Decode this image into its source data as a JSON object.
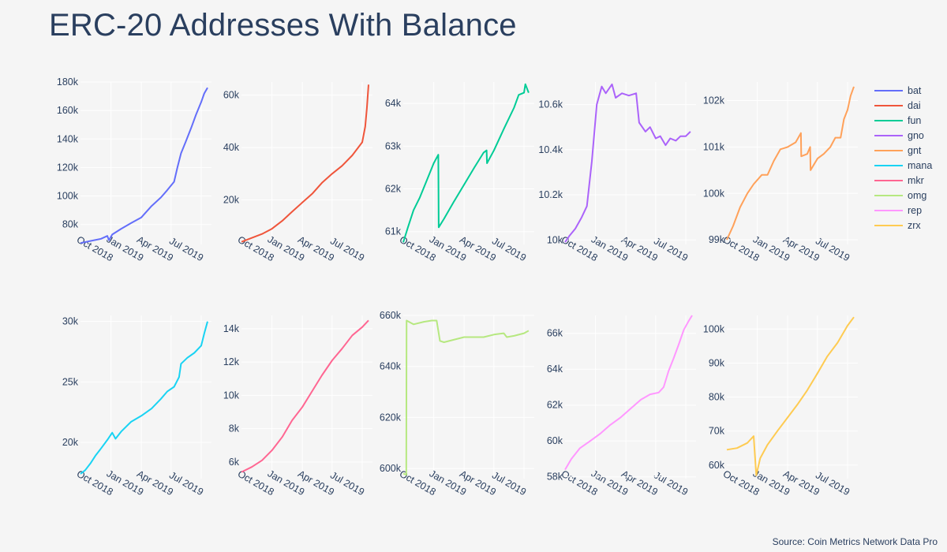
{
  "title": "ERC-20 Addresses With Balance",
  "source": "Source: Coin Metrics Network Data Pro",
  "colors": {
    "bat": "#636efa",
    "dai": "#ef553b",
    "fun": "#00cc96",
    "gno": "#ab63fa",
    "gnt": "#ffa15a",
    "mana": "#19d3f3",
    "mkr": "#ff6692",
    "omg": "#b6e880",
    "rep": "#ff97ff",
    "zrx": "#fecb52",
    "axis_text": "#2a3f5f",
    "grid": "#ffffff",
    "background": "#f5f5f5"
  },
  "legend": [
    "bat",
    "dai",
    "fun",
    "gno",
    "gnt",
    "mana",
    "mkr",
    "omg",
    "rep",
    "zrx"
  ],
  "chart_data": [
    {
      "type": "line",
      "name": "bat",
      "xlim": [
        "2018-07-01",
        "2019-08-01"
      ],
      "ylim": [
        66000,
        180000
      ],
      "yticks": [
        80000,
        100000,
        120000,
        140000,
        160000,
        180000
      ],
      "yticklabels": [
        "80k",
        "100k",
        "120k",
        "140k",
        "160k",
        "180k"
      ],
      "xticks": [
        "2018-10-01",
        "2019-01-01",
        "2019-04-01",
        "2019-07-01"
      ],
      "xticklabels": [
        "Oct 2018",
        "Jan 2019",
        "Apr 2019",
        "Jul 2019"
      ],
      "x": [
        "2018-07-01",
        "2018-08-01",
        "2018-09-01",
        "2018-09-20",
        "2018-09-25",
        "2018-10-05",
        "2018-11-01",
        "2018-12-01",
        "2019-01-01",
        "2019-02-01",
        "2019-03-01",
        "2019-03-20",
        "2019-04-10",
        "2019-04-20",
        "2019-05-01",
        "2019-05-15",
        "2019-06-01",
        "2019-06-15",
        "2019-07-01",
        "2019-07-10",
        "2019-07-20"
      ],
      "y": [
        67000,
        68500,
        70000,
        72000,
        69000,
        73000,
        77000,
        81000,
        85000,
        93000,
        99000,
        104000,
        110000,
        120000,
        130000,
        138000,
        148000,
        157000,
        166000,
        172000,
        176000
      ]
    },
    {
      "type": "line",
      "name": "dai",
      "xlim": [
        "2018-07-01",
        "2019-08-01"
      ],
      "ylim": [
        3000,
        65000
      ],
      "yticks": [
        20000,
        40000,
        60000
      ],
      "yticklabels": [
        "20k",
        "40k",
        "60k"
      ],
      "xticks": [
        "2018-10-01",
        "2019-01-01",
        "2019-04-01",
        "2019-07-01"
      ],
      "xticklabels": [
        "Oct 2018",
        "Jan 2019",
        "Apr 2019",
        "Jul 2019"
      ],
      "x": [
        "2018-07-01",
        "2018-08-01",
        "2018-09-01",
        "2018-10-01",
        "2018-11-01",
        "2018-12-01",
        "2019-01-01",
        "2019-02-01",
        "2019-03-01",
        "2019-04-01",
        "2019-05-01",
        "2019-06-01",
        "2019-07-01",
        "2019-07-10",
        "2019-07-15",
        "2019-07-20"
      ],
      "y": [
        4000,
        5500,
        7000,
        9000,
        12000,
        15500,
        19000,
        22500,
        26500,
        30000,
        33000,
        37000,
        42000,
        48000,
        55000,
        64000
      ]
    },
    {
      "type": "line",
      "name": "fun",
      "xlim": [
        "2018-07-01",
        "2019-08-01"
      ],
      "ylim": [
        60700,
        64500
      ],
      "yticks": [
        61000,
        62000,
        63000,
        64000
      ],
      "yticklabels": [
        "61k",
        "62k",
        "63k",
        "64k"
      ],
      "xticks": [
        "2018-10-01",
        "2019-01-01",
        "2019-04-01",
        "2019-07-01"
      ],
      "xticklabels": [
        "Oct 2018",
        "Jan 2019",
        "Apr 2019",
        "Jul 2019"
      ],
      "x": [
        "2018-07-01",
        "2018-07-15",
        "2018-08-01",
        "2018-08-20",
        "2018-09-10",
        "2018-10-01",
        "2018-10-15",
        "2018-10-16",
        "2018-11-01",
        "2018-12-01",
        "2019-01-01",
        "2019-02-01",
        "2019-03-01",
        "2019-03-10",
        "2019-03-11",
        "2019-04-01",
        "2019-05-01",
        "2019-06-01",
        "2019-06-15",
        "2019-07-01",
        "2019-07-05",
        "2019-07-15"
      ],
      "y": [
        60750,
        61100,
        61500,
        61800,
        62200,
        62600,
        62800,
        61100,
        61300,
        61700,
        62100,
        62500,
        62850,
        62900,
        62600,
        62900,
        63400,
        63900,
        64200,
        64250,
        64450,
        64250
      ]
    },
    {
      "type": "line",
      "name": "gno",
      "xlim": [
        "2018-07-01",
        "2019-08-01"
      ],
      "ylim": [
        9980,
        10700
      ],
      "yticks": [
        10000,
        10200,
        10400,
        10600
      ],
      "yticklabels": [
        "10k",
        "10.2k",
        "10.4k",
        "10.6k"
      ],
      "xticks": [
        "2018-10-01",
        "2019-01-01",
        "2019-04-01",
        "2019-07-01"
      ],
      "xticklabels": [
        "Oct 2018",
        "Jan 2019",
        "Apr 2019",
        "Jul 2019"
      ],
      "x": [
        "2018-07-01",
        "2018-07-15",
        "2018-08-01",
        "2018-08-20",
        "2018-09-05",
        "2018-09-20",
        "2018-10-05",
        "2018-10-20",
        "2018-11-01",
        "2018-11-20",
        "2018-12-01",
        "2018-12-20",
        "2019-01-10",
        "2019-02-01",
        "2019-02-10",
        "2019-03-01",
        "2019-03-15",
        "2019-04-01",
        "2019-04-15",
        "2019-05-01",
        "2019-05-15",
        "2019-06-01",
        "2019-06-15",
        "2019-07-01",
        "2019-07-15"
      ],
      "y": [
        9990,
        10020,
        10050,
        10100,
        10150,
        10350,
        10600,
        10680,
        10650,
        10690,
        10630,
        10650,
        10640,
        10650,
        10520,
        10480,
        10500,
        10450,
        10460,
        10420,
        10450,
        10440,
        10460,
        10460,
        10480
      ]
    },
    {
      "type": "line",
      "name": "gnt",
      "xlim": [
        "2018-07-01",
        "2019-08-01"
      ],
      "ylim": [
        98900,
        102400
      ],
      "yticks": [
        99000,
        100000,
        101000,
        102000
      ],
      "yticklabels": [
        "99k",
        "100k",
        "101k",
        "102k"
      ],
      "xticks": [
        "2018-10-01",
        "2019-01-01",
        "2019-04-01",
        "2019-07-01"
      ],
      "xticklabels": [
        "Oct 2018",
        "Jan 2019",
        "Apr 2019",
        "Jul 2019"
      ],
      "x": [
        "2018-07-01",
        "2018-07-20",
        "2018-08-10",
        "2018-09-01",
        "2018-09-20",
        "2018-10-15",
        "2018-11-01",
        "2018-11-20",
        "2018-12-10",
        "2019-01-01",
        "2019-01-25",
        "2019-02-10",
        "2019-02-11",
        "2019-03-01",
        "2019-03-10",
        "2019-03-11",
        "2019-04-01",
        "2019-04-20",
        "2019-05-10",
        "2019-05-25",
        "2019-06-10",
        "2019-06-20",
        "2019-07-01",
        "2019-07-10",
        "2019-07-20"
      ],
      "y": [
        99000,
        99300,
        99700,
        100000,
        100200,
        100400,
        100400,
        100700,
        100950,
        101000,
        101100,
        101300,
        100800,
        100850,
        101000,
        100500,
        100750,
        100850,
        101000,
        101200,
        101200,
        101600,
        101800,
        102100,
        102300
      ]
    },
    {
      "type": "line",
      "name": "mana",
      "xlim": [
        "2018-07-01",
        "2019-08-01"
      ],
      "ylim": [
        17000,
        30500
      ],
      "yticks": [
        20000,
        25000,
        30000
      ],
      "yticklabels": [
        "20k",
        "25k",
        "30k"
      ],
      "xticks": [
        "2018-10-01",
        "2019-01-01",
        "2019-04-01",
        "2019-07-01"
      ],
      "xticklabels": [
        "Oct 2018",
        "Jan 2019",
        "Apr 2019",
        "Jul 2019"
      ],
      "x": [
        "2018-07-01",
        "2018-07-15",
        "2018-08-01",
        "2018-08-15",
        "2018-09-01",
        "2018-09-20",
        "2018-10-05",
        "2018-10-15",
        "2018-11-01",
        "2018-12-01",
        "2019-01-01",
        "2019-02-01",
        "2019-03-01",
        "2019-03-20",
        "2019-04-10",
        "2019-04-25",
        "2019-05-01",
        "2019-05-20",
        "2019-06-10",
        "2019-07-01",
        "2019-07-10",
        "2019-07-20"
      ],
      "y": [
        17400,
        17700,
        18300,
        18900,
        19500,
        20200,
        20800,
        20300,
        20900,
        21700,
        22200,
        22800,
        23600,
        24200,
        24600,
        25400,
        26500,
        27000,
        27400,
        28000,
        29000,
        30000
      ]
    },
    {
      "type": "line",
      "name": "mkr",
      "xlim": [
        "2018-07-01",
        "2019-08-01"
      ],
      "ylim": [
        5000,
        14800
      ],
      "yticks": [
        6000,
        8000,
        10000,
        12000,
        14000
      ],
      "yticklabels": [
        "6k",
        "8k",
        "10k",
        "12k",
        "14k"
      ],
      "xticks": [
        "2018-10-01",
        "2019-01-01",
        "2019-04-01",
        "2019-07-01"
      ],
      "xticklabels": [
        "Oct 2018",
        "Jan 2019",
        "Apr 2019",
        "Jul 2019"
      ],
      "x": [
        "2018-07-01",
        "2018-08-01",
        "2018-09-01",
        "2018-10-01",
        "2018-11-01",
        "2018-12-01",
        "2019-01-01",
        "2019-02-01",
        "2019-03-01",
        "2019-04-01",
        "2019-05-01",
        "2019-06-01",
        "2019-07-01",
        "2019-07-20"
      ],
      "y": [
        5400,
        5700,
        6100,
        6700,
        7500,
        8500,
        9300,
        10300,
        11200,
        12100,
        12800,
        13600,
        14100,
        14500
      ]
    },
    {
      "type": "line",
      "name": "omg",
      "xlim": [
        "2018-07-01",
        "2019-08-01"
      ],
      "ylim": [
        596000,
        660000
      ],
      "yticks": [
        600000,
        620000,
        640000,
        660000
      ],
      "yticklabels": [
        "600k",
        "620k",
        "640k",
        "660k"
      ],
      "xticks": [
        "2018-10-01",
        "2019-01-01",
        "2019-04-01",
        "2019-07-01"
      ],
      "xticklabels": [
        "Oct 2018",
        "Jan 2019",
        "Apr 2019",
        "Jul 2019"
      ],
      "x": [
        "2018-07-01",
        "2018-07-10",
        "2018-07-11",
        "2018-08-01",
        "2018-09-01",
        "2018-09-25",
        "2018-10-10",
        "2018-10-20",
        "2018-11-01",
        "2019-01-01",
        "2019-03-01",
        "2019-04-01",
        "2019-05-01",
        "2019-05-10",
        "2019-06-01",
        "2019-07-01",
        "2019-07-15"
      ],
      "y": [
        598000,
        597500,
        658000,
        656500,
        657500,
        658000,
        658000,
        650000,
        649500,
        651500,
        651500,
        652500,
        653000,
        651500,
        652000,
        653000,
        654000
      ]
    },
    {
      "type": "line",
      "name": "rep",
      "xlim": [
        "2018-07-01",
        "2019-08-01"
      ],
      "ylim": [
        57900,
        67000
      ],
      "yticks": [
        58000,
        60000,
        62000,
        64000,
        66000
      ],
      "yticklabels": [
        "58k",
        "60k",
        "62k",
        "64k",
        "66k"
      ],
      "xticks": [
        "2018-10-01",
        "2019-01-01",
        "2019-04-01",
        "2019-07-01"
      ],
      "xticklabels": [
        "Oct 2018",
        "Jan 2019",
        "Apr 2019",
        "Jul 2019"
      ],
      "x": [
        "2018-07-01",
        "2018-07-20",
        "2018-08-15",
        "2018-09-15",
        "2018-10-15",
        "2018-11-15",
        "2018-12-15",
        "2019-01-15",
        "2019-02-15",
        "2019-03-15",
        "2019-04-10",
        "2019-04-25",
        "2019-05-10",
        "2019-05-25",
        "2019-06-10",
        "2019-06-25",
        "2019-07-10",
        "2019-07-20"
      ],
      "y": [
        58400,
        59000,
        59600,
        60000,
        60400,
        60900,
        61300,
        61800,
        62300,
        62600,
        62700,
        63000,
        63900,
        64600,
        65400,
        66200,
        66700,
        67000
      ]
    },
    {
      "type": "line",
      "name": "zrx",
      "xlim": [
        "2018-07-01",
        "2019-08-01"
      ],
      "ylim": [
        56000,
        104000
      ],
      "yticks": [
        60000,
        70000,
        80000,
        90000,
        100000
      ],
      "yticklabels": [
        "60k",
        "70k",
        "80k",
        "90k",
        "100k"
      ],
      "xticks": [
        "2018-10-01",
        "2019-01-01",
        "2019-04-01",
        "2019-07-01"
      ],
      "xticklabels": [
        "Oct 2018",
        "Jan 2019",
        "Apr 2019",
        "Jul 2019"
      ],
      "x": [
        "2018-07-01",
        "2018-08-01",
        "2018-09-01",
        "2018-09-20",
        "2018-09-28",
        "2018-10-10",
        "2018-11-01",
        "2018-12-01",
        "2019-01-01",
        "2019-02-01",
        "2019-03-01",
        "2019-04-01",
        "2019-05-01",
        "2019-06-01",
        "2019-07-01",
        "2019-07-20"
      ],
      "y": [
        64500,
        65000,
        66500,
        68500,
        57000,
        62000,
        66000,
        70000,
        74000,
        78000,
        82000,
        87000,
        92000,
        96000,
        101000,
        103500
      ]
    }
  ]
}
